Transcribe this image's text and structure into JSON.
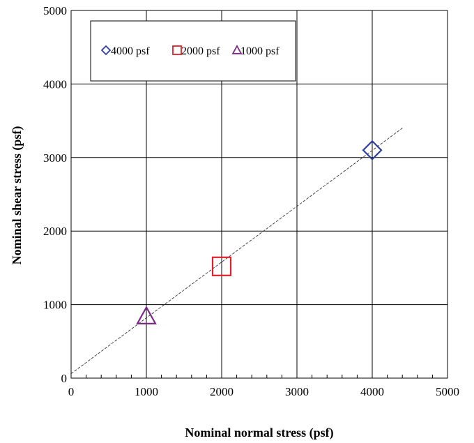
{
  "chart_data": {
    "type": "scatter",
    "xlabel": "Nominal normal stress (psf)",
    "ylabel": "Nominal shear stress (psf)",
    "xlim": [
      0,
      5000
    ],
    "ylim": [
      0,
      5000
    ],
    "xticks": [
      0,
      1000,
      2000,
      3000,
      4000,
      5000
    ],
    "yticks": [
      0,
      1000,
      2000,
      3000,
      4000,
      5000
    ],
    "xtick_labels": [
      "0",
      "1000",
      "2000",
      "3000",
      "4000",
      "5000"
    ],
    "ytick_labels": [
      "0",
      "1000",
      "2000",
      "3000",
      "4000",
      "5000"
    ],
    "grid": true,
    "legend_position": "top-left",
    "series": [
      {
        "name": "4000 psf",
        "marker": "diamond",
        "color": "#2e3f9e",
        "points": [
          {
            "x": 4000,
            "y": 3100
          }
        ]
      },
      {
        "name": "2000 psf",
        "marker": "square",
        "color": "#e0202a",
        "points": [
          {
            "x": 2000,
            "y": 1520
          }
        ]
      },
      {
        "name": "1000 psf",
        "marker": "triangle",
        "color": "#7b2a86",
        "points": [
          {
            "x": 1000,
            "y": 840
          }
        ]
      }
    ],
    "trendline": {
      "style": "dashed",
      "color": "#333333",
      "points": [
        {
          "x": 0,
          "y": 60
        },
        {
          "x": 4400,
          "y": 3400
        }
      ]
    }
  }
}
